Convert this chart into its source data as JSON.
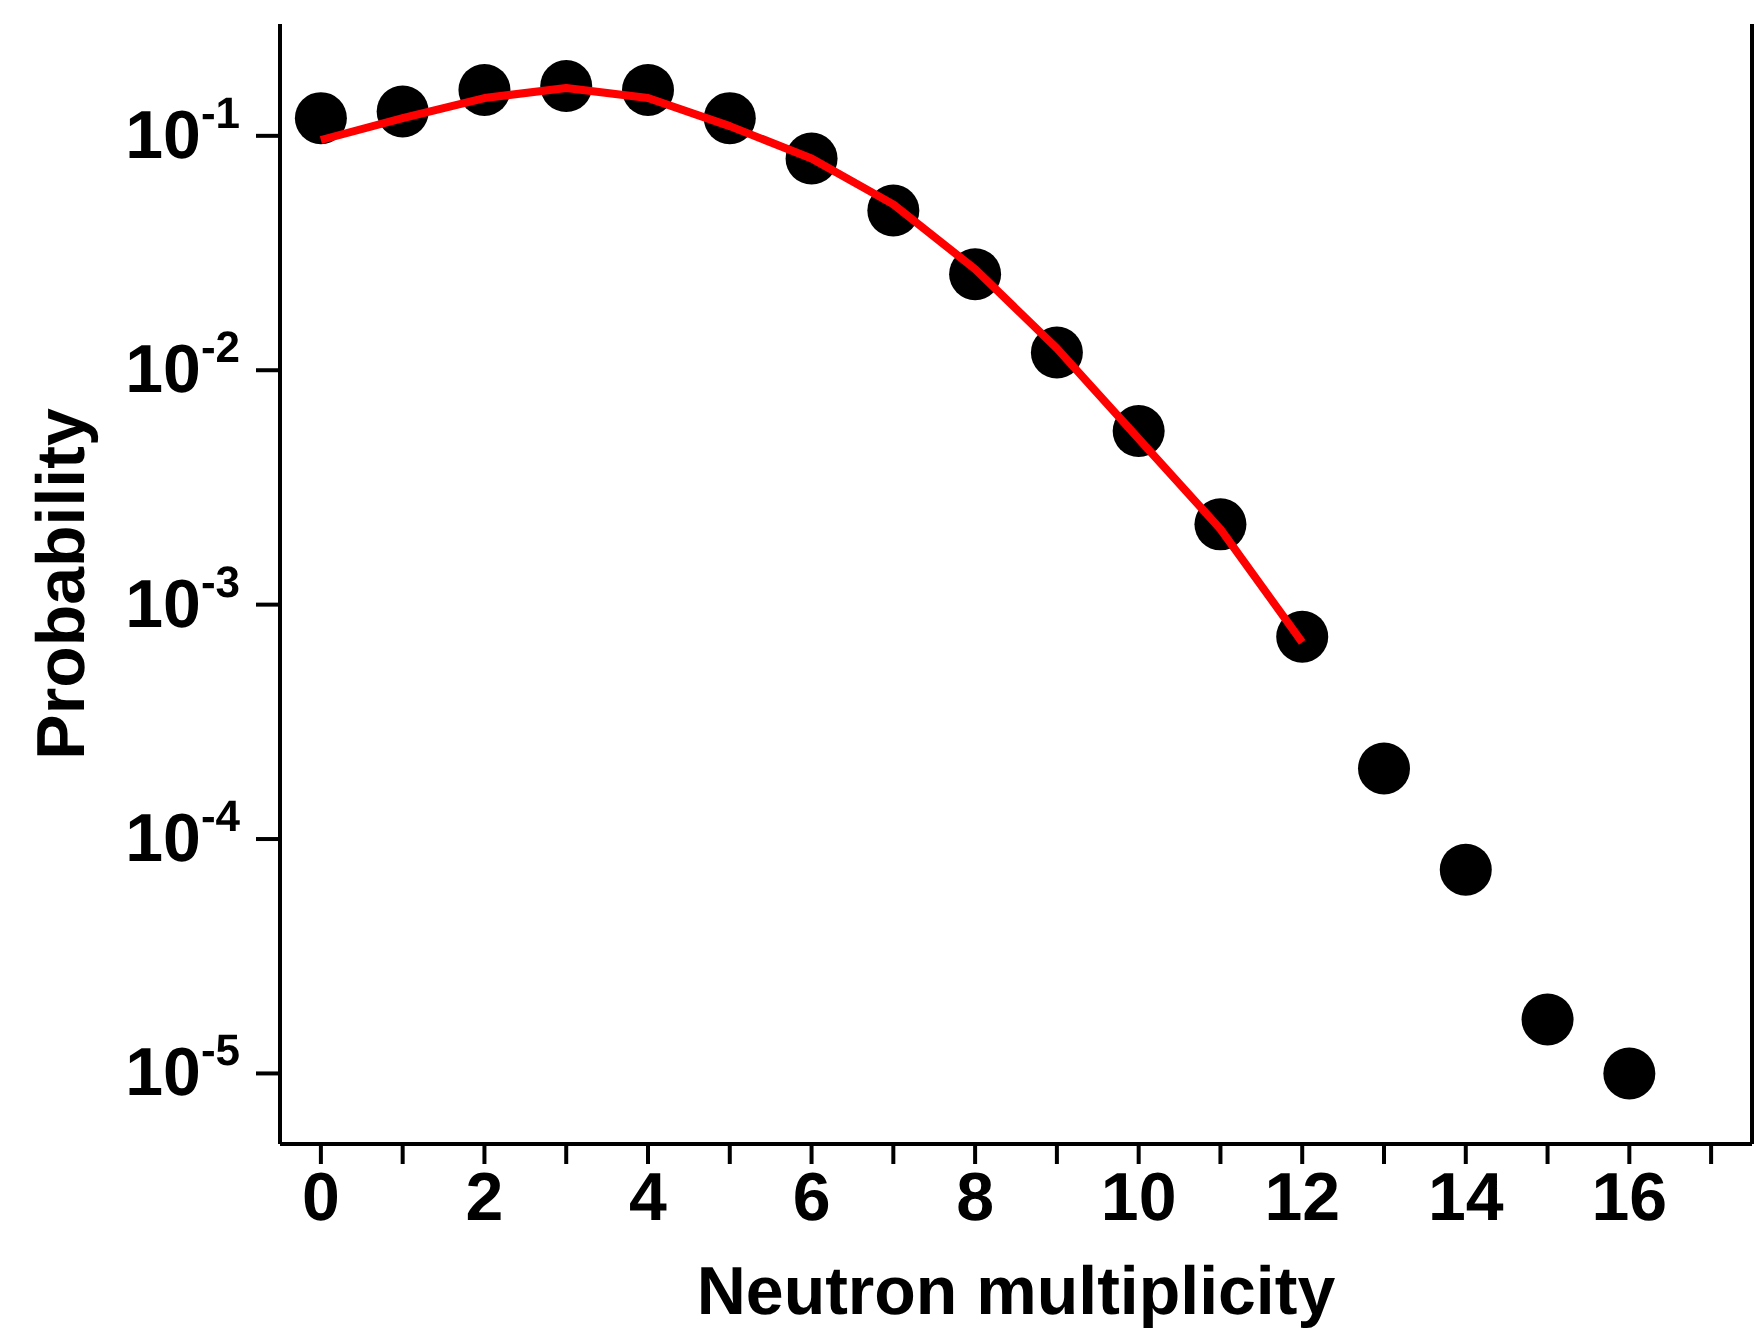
{
  "chart_data": {
    "type": "scatter",
    "xlabel": "Neutron multiplicity",
    "ylabel": "Probability",
    "log": "y",
    "xlim": [
      -0.5,
      17.5
    ],
    "xticks": [
      0,
      2,
      4,
      6,
      8,
      10,
      12,
      14,
      16
    ],
    "ylim": [
      5e-06,
      0.3
    ],
    "yticks": [
      {
        "value": 0.1,
        "label": "10$^{-1}$"
      },
      {
        "value": 0.01,
        "label": "10$^{-2}$"
      },
      {
        "value": 0.001,
        "label": "10$^{-3}$"
      },
      {
        "value": 0.0001,
        "label": "10$^{-4}$"
      },
      {
        "value": 1e-05,
        "label": "10$^{-5}$"
      }
    ],
    "grid": false,
    "legend": false,
    "series": [
      {
        "color": "#000000",
        "marker": "circle",
        "x": [
          0,
          1,
          2,
          3,
          4,
          5,
          6,
          7,
          8,
          9,
          10,
          11,
          12,
          13,
          14,
          15,
          16
        ],
        "values": [
          0.119,
          0.127,
          0.157,
          0.163,
          0.157,
          0.119,
          0.08,
          0.048,
          0.0257,
          0.0119,
          0.0055,
          0.0022,
          0.00073,
          0.0002,
          7.4e-05,
          1.7e-05,
          1e-05
        ]
      },
      {
        "type": "line",
        "color": "#ff0000",
        "line_style": "solid",
        "marker": "none",
        "x": [
          0,
          1,
          2,
          3,
          4,
          5,
          6,
          7,
          8,
          9,
          10,
          11,
          12
        ],
        "values": [
          0.096,
          0.119,
          0.145,
          0.16,
          0.145,
          0.11,
          0.08,
          0.051,
          0.027,
          0.0124,
          0.0051,
          0.0021,
          0.00069
        ]
      }
    ]
  }
}
